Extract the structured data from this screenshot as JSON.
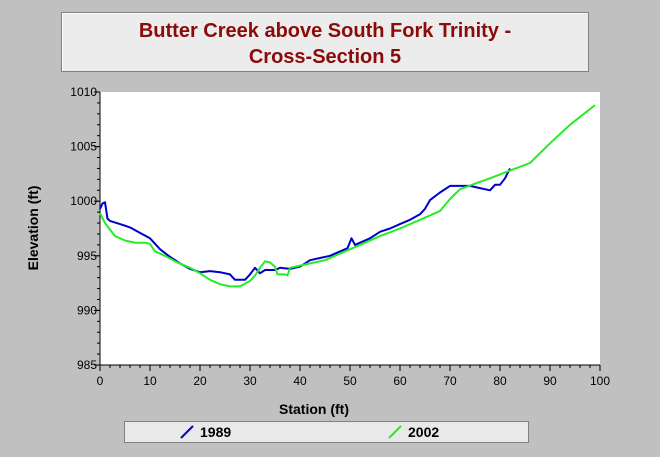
{
  "chart_data": {
    "type": "line",
    "title_lines": [
      "Butter Creek above South Fork Trinity -",
      "Cross-Section 5"
    ],
    "xlabel": "Station (ft)",
    "ylabel": "Elevation (ft)",
    "xlim": [
      0,
      100
    ],
    "ylim": [
      985,
      1010
    ],
    "xticks": [
      0,
      10,
      20,
      30,
      40,
      50,
      60,
      70,
      80,
      90,
      100
    ],
    "yticks": [
      985,
      990,
      995,
      1000,
      1005,
      1010
    ],
    "x_minor_step": 2,
    "y_minor_step": 1,
    "grid": false,
    "legend_position": "bottom",
    "series": [
      {
        "name": "1989",
        "color": "#0000cc",
        "points": [
          [
            0,
            999.3
          ],
          [
            0.5,
            999.8
          ],
          [
            1,
            999.9
          ],
          [
            1.5,
            998.4
          ],
          [
            2,
            998.2
          ],
          [
            4,
            997.9
          ],
          [
            6,
            997.6
          ],
          [
            8,
            997.1
          ],
          [
            10,
            996.6
          ],
          [
            12,
            995.6
          ],
          [
            14,
            994.9
          ],
          [
            16,
            994.3
          ],
          [
            18,
            993.8
          ],
          [
            20,
            993.5
          ],
          [
            22,
            993.6
          ],
          [
            24,
            993.5
          ],
          [
            26,
            993.3
          ],
          [
            27,
            992.8
          ],
          [
            29,
            992.8
          ],
          [
            30,
            993.3
          ],
          [
            31,
            993.9
          ],
          [
            32,
            993.4
          ],
          [
            33,
            993.7
          ],
          [
            35,
            993.7
          ],
          [
            36,
            993.9
          ],
          [
            38,
            993.8
          ],
          [
            40,
            994.0
          ],
          [
            42,
            994.6
          ],
          [
            44,
            994.8
          ],
          [
            46,
            995.0
          ],
          [
            48,
            995.4
          ],
          [
            49.5,
            995.7
          ],
          [
            50.3,
            996.6
          ],
          [
            51,
            996.0
          ],
          [
            52,
            996.2
          ],
          [
            54,
            996.6
          ],
          [
            56,
            997.2
          ],
          [
            58,
            997.5
          ],
          [
            60,
            997.9
          ],
          [
            62,
            998.3
          ],
          [
            64,
            998.8
          ],
          [
            65,
            999.3
          ],
          [
            66,
            1000.1
          ],
          [
            68,
            1000.8
          ],
          [
            70,
            1001.4
          ],
          [
            72,
            1001.4
          ],
          [
            74,
            1001.4
          ],
          [
            76,
            1001.2
          ],
          [
            78,
            1001.0
          ],
          [
            79,
            1001.5
          ],
          [
            80,
            1001.5
          ],
          [
            81,
            1002.1
          ],
          [
            82,
            1003.0
          ]
        ]
      },
      {
        "name": "2002",
        "color": "#22ee22",
        "points": [
          [
            0,
            998.9
          ],
          [
            1,
            998.0
          ],
          [
            2,
            997.4
          ],
          [
            3,
            996.8
          ],
          [
            5,
            996.4
          ],
          [
            7,
            996.2
          ],
          [
            9,
            996.2
          ],
          [
            10,
            996.1
          ],
          [
            11,
            995.4
          ],
          [
            13,
            995.0
          ],
          [
            15,
            994.5
          ],
          [
            18,
            993.9
          ],
          [
            20,
            993.4
          ],
          [
            22,
            992.8
          ],
          [
            24,
            992.4
          ],
          [
            26,
            992.2
          ],
          [
            28,
            992.2
          ],
          [
            30,
            992.7
          ],
          [
            31,
            993.2
          ],
          [
            32,
            993.9
          ],
          [
            33,
            994.5
          ],
          [
            34,
            994.4
          ],
          [
            35,
            994.0
          ],
          [
            35.5,
            993.3
          ],
          [
            37,
            993.3
          ],
          [
            37.5,
            993.2
          ],
          [
            38,
            993.9
          ],
          [
            40,
            994.1
          ],
          [
            42,
            994.3
          ],
          [
            45,
            994.6
          ],
          [
            48,
            995.2
          ],
          [
            52,
            996.0
          ],
          [
            56,
            996.8
          ],
          [
            60,
            997.5
          ],
          [
            64,
            998.3
          ],
          [
            68,
            999.1
          ],
          [
            70,
            1000.2
          ],
          [
            72,
            1001.1
          ],
          [
            75,
            1001.6
          ],
          [
            78,
            1002.1
          ],
          [
            82,
            1002.8
          ],
          [
            86,
            1003.5
          ],
          [
            90,
            1005.3
          ],
          [
            94,
            1007.0
          ],
          [
            99,
            1008.8
          ]
        ]
      }
    ]
  }
}
